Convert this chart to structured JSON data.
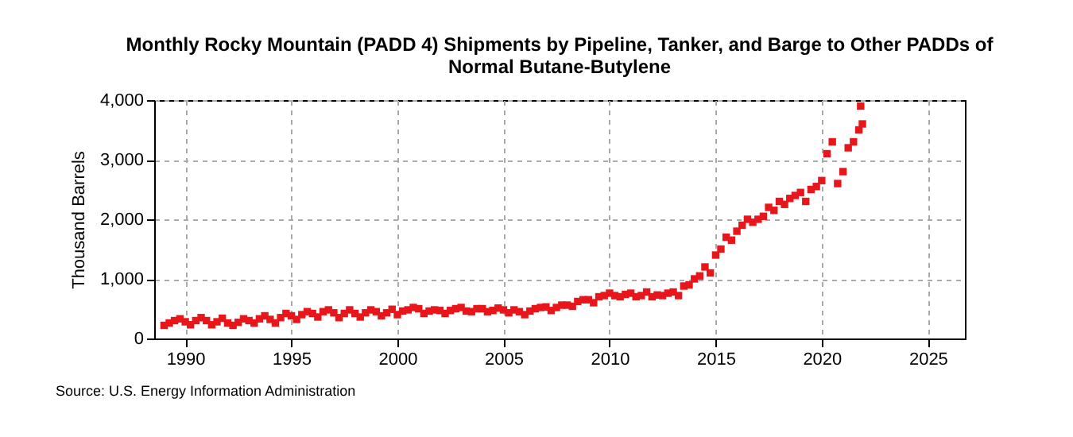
{
  "chart_data": {
    "type": "scatter",
    "title": "Monthly Rocky Mountain (PADD 4) Shipments by Pipeline, Tanker, and Barge to Other PADDs of Normal Butane-Butylene",
    "ylabel": "Thousand Barrels",
    "annotations": [
      "Source: U.S. Energy Information Administration"
    ],
    "x": [
      "1989-01",
      "1989-04",
      "1989-07",
      "1989-10",
      "1990-01",
      "1990-04",
      "1990-07",
      "1990-10",
      "1991-01",
      "1991-04",
      "1991-07",
      "1991-10",
      "1992-01",
      "1992-04",
      "1992-07",
      "1992-10",
      "1993-01",
      "1993-04",
      "1993-07",
      "1993-10",
      "1994-01",
      "1994-04",
      "1994-07",
      "1994-10",
      "1995-01",
      "1995-04",
      "1995-07",
      "1995-10",
      "1996-01",
      "1996-04",
      "1996-07",
      "1996-10",
      "1997-01",
      "1997-04",
      "1997-07",
      "1997-10",
      "1998-01",
      "1998-04",
      "1998-07",
      "1998-10",
      "1999-01",
      "1999-04",
      "1999-07",
      "1999-10",
      "2000-01",
      "2000-04",
      "2000-07",
      "2000-10",
      "2001-01",
      "2001-04",
      "2001-07",
      "2001-10",
      "2002-01",
      "2002-04",
      "2002-07",
      "2002-10",
      "2003-01",
      "2003-04",
      "2003-07",
      "2003-10",
      "2004-01",
      "2004-04",
      "2004-07",
      "2004-10",
      "2005-01",
      "2005-04",
      "2005-07",
      "2005-10",
      "2006-01",
      "2006-04",
      "2006-07",
      "2006-10",
      "2007-01",
      "2007-04",
      "2007-07",
      "2007-10",
      "2008-01",
      "2008-04",
      "2008-07",
      "2008-10",
      "2009-01",
      "2009-04",
      "2009-07",
      "2009-10",
      "2010-01",
      "2010-04",
      "2010-07",
      "2010-10",
      "2011-01",
      "2011-04",
      "2011-07",
      "2011-10",
      "2012-01",
      "2012-04",
      "2012-07",
      "2012-10",
      "2013-01",
      "2013-04",
      "2013-07",
      "2013-10",
      "2014-01",
      "2014-04",
      "2014-07",
      "2014-10",
      "2015-01",
      "2015-04",
      "2015-07",
      "2015-10",
      "2016-01",
      "2016-04",
      "2016-07",
      "2016-10",
      "2017-01",
      "2017-04",
      "2017-07",
      "2017-10",
      "2018-01",
      "2018-04",
      "2018-07",
      "2018-10",
      "2019-01",
      "2019-04",
      "2019-07",
      "2019-10",
      "2020-01",
      "2020-04",
      "2020-07",
      "2020-10",
      "2021-01",
      "2021-04",
      "2021-07",
      "2021-10",
      "2021-11",
      "2021-12"
    ],
    "series": [
      {
        "color": "#e8161b",
        "values": [
          220,
          260,
          300,
          330,
          280,
          230,
          300,
          350,
          300,
          230,
          280,
          340,
          260,
          220,
          270,
          330,
          300,
          260,
          330,
          380,
          320,
          260,
          350,
          420,
          380,
          320,
          400,
          450,
          420,
          360,
          450,
          480,
          430,
          350,
          420,
          480,
          420,
          360,
          430,
          480,
          450,
          380,
          430,
          490,
          400,
          460,
          480,
          520,
          500,
          420,
          460,
          480,
          470,
          420,
          470,
          500,
          520,
          460,
          450,
          500,
          500,
          450,
          470,
          510,
          480,
          430,
          480,
          450,
          400,
          460,
          500,
          520,
          530,
          470,
          520,
          560,
          560,
          540,
          620,
          650,
          650,
          600,
          700,
          720,
          760,
          720,
          700,
          740,
          760,
          700,
          720,
          780,
          700,
          730,
          720,
          760,
          780,
          720,
          880,
          900,
          1000,
          1050,
          1200,
          1100,
          1400,
          1500,
          1700,
          1650,
          1800,
          1900,
          2000,
          1950,
          2000,
          2050,
          2200,
          2150,
          2300,
          2250,
          2350,
          2400,
          2450,
          2300,
          2500,
          2550,
          2650,
          3100,
          3300,
          2600,
          2800,
          3200,
          3300,
          3500,
          3900,
          3600
        ]
      }
    ],
    "xlim": [
      "1988-07-15",
      "2026-10-01"
    ],
    "xticks": [
      "1990",
      "1995",
      "2000",
      "2005",
      "2010",
      "2015",
      "2020",
      "2025"
    ],
    "ylim": [
      0,
      4000
    ],
    "yticks": [
      {
        "value": 0,
        "label": "0"
      },
      {
        "value": 1000,
        "label": "1,000"
      },
      {
        "value": 2000,
        "label": "2,000"
      },
      {
        "value": 3000,
        "label": "3,000"
      },
      {
        "value": 4000,
        "label": "4,000"
      }
    ],
    "grid": true,
    "marker": "square"
  }
}
